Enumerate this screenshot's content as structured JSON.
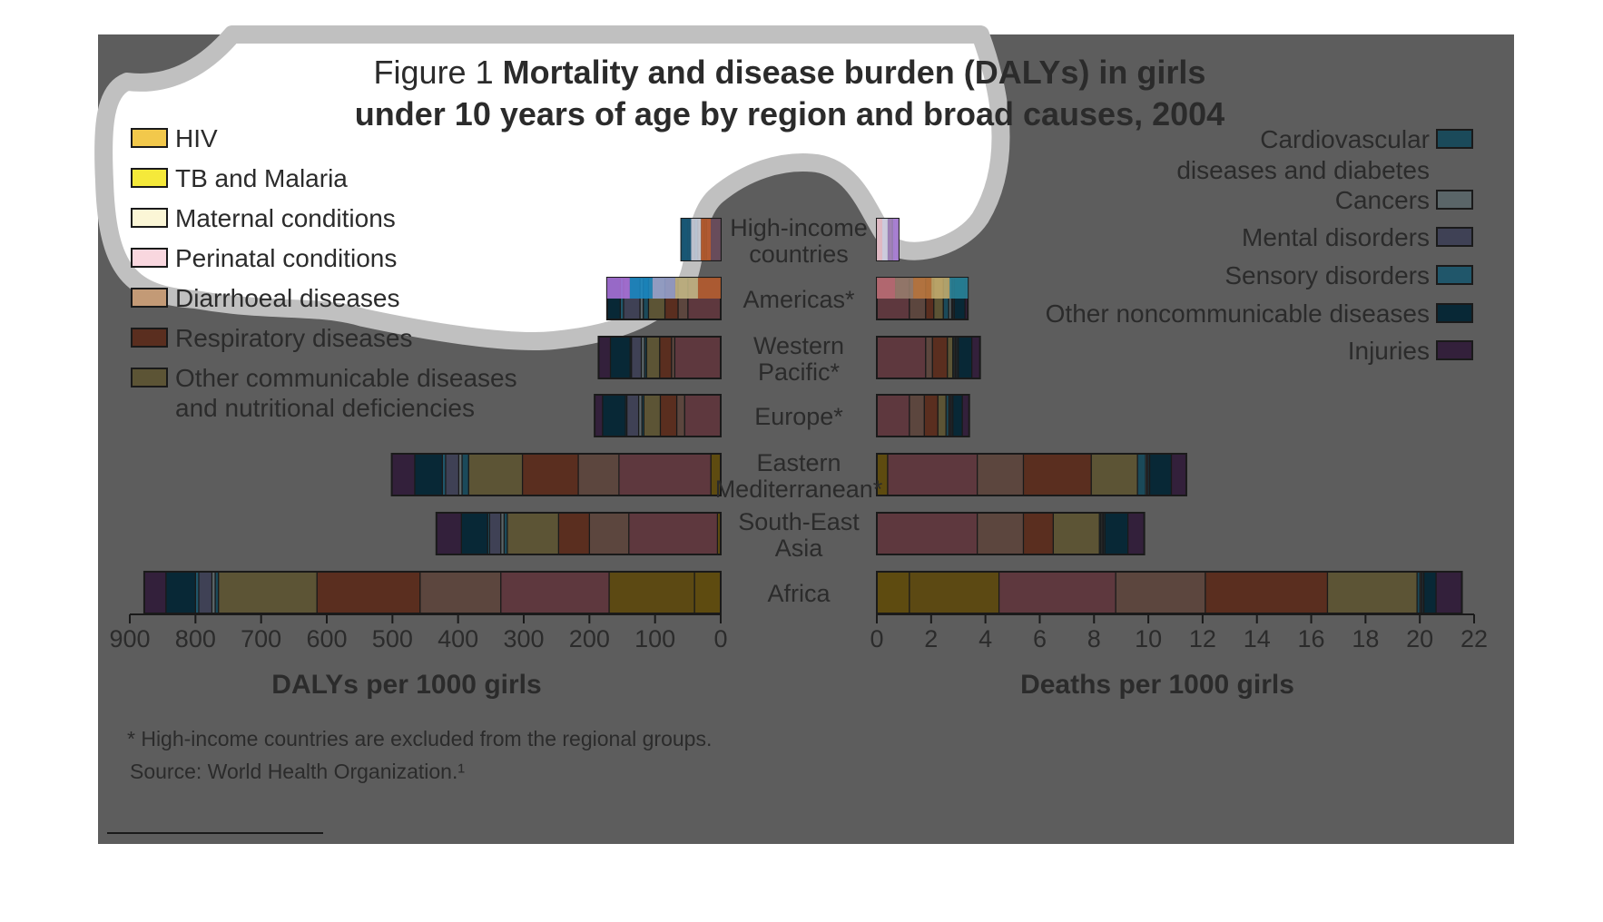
{
  "figure": {
    "title_prefix": "Figure 1",
    "title_line1": "Mortality and disease burden (DALYs) in girls",
    "title_line2": "under 10 years of age by region and broad causes, 2004",
    "footnote": "* High-income countries are excluded from the regional groups.",
    "source": "Source: World Health Organization.¹"
  },
  "colors": {
    "panel_bg": "#5d5d5d",
    "panel_text": "#2b2b2b",
    "overlay_stroke": "#c0c0c0",
    "overlay_fill": "#ffffff",
    "bar_outline": "#1a1a1a"
  },
  "chart_data": [
    {
      "type": "bar",
      "orientation": "horizontal",
      "direction": "right-to-left",
      "stacked": true,
      "xlabel": "DALYs per 1000 girls",
      "ylabel": "",
      "xlim": [
        0,
        900
      ],
      "xticks": [
        "900",
        "800",
        "700",
        "600",
        "500",
        "400",
        "300",
        "200",
        "100",
        "0"
      ],
      "categories": [
        "High-income countries",
        "Americas*",
        "Western Pacific*",
        "Europe*",
        "Eastern Mediterranean*",
        "South-East Asia",
        "Africa"
      ],
      "series": [
        {
          "name": "HIV",
          "values": [
            0,
            0,
            0,
            0,
            15,
            5,
            40
          ],
          "color": "#5e4b10"
        },
        {
          "name": "TB and Malaria",
          "values": [
            0,
            0,
            0,
            0,
            0,
            0,
            130
          ],
          "color": "#5c4913"
        },
        {
          "name": "Maternal conditions",
          "values": [
            0,
            0,
            0,
            0,
            0,
            0,
            0
          ],
          "color": "#5c5a45"
        },
        {
          "name": "Perinatal conditions",
          "values": [
            22,
            50,
            70,
            55,
            140,
            135,
            165
          ],
          "color": "#5e383e"
        },
        {
          "name": "Diarrhoeal diseases",
          "values": [
            3,
            15,
            5,
            12,
            62,
            60,
            123
          ],
          "color": "#5c463e"
        },
        {
          "name": "Respiratory diseases",
          "values": [
            5,
            20,
            18,
            25,
            85,
            47,
            157
          ],
          "color": "#5a2e1f"
        },
        {
          "name": "Other communicable diseases and nutritional deficiencies",
          "values": [
            5,
            25,
            20,
            25,
            82,
            78,
            150
          ],
          "color": "#5c5435"
        },
        {
          "name": "Cardiovascular diseases and diabetes",
          "values": [
            5,
            8,
            3,
            3,
            10,
            5,
            5
          ],
          "color": "#1b4a5a"
        },
        {
          "name": "Cancers",
          "values": [
            3,
            5,
            5,
            5,
            5,
            5,
            5
          ],
          "color": "#5a6568"
        },
        {
          "name": "Mental disorders",
          "values": [
            5,
            25,
            15,
            18,
            20,
            17,
            20
          ],
          "color": "#3f4155"
        },
        {
          "name": "Sensory disorders",
          "values": [
            2,
            5,
            2,
            2,
            5,
            3,
            5
          ],
          "color": "#20566a"
        },
        {
          "name": "Other noncommunicable diseases",
          "values": [
            8,
            20,
            30,
            35,
            42,
            40,
            45
          ],
          "color": "#082836"
        },
        {
          "name": "Injuries",
          "values": [
            2,
            0,
            18,
            12,
            35,
            38,
            33
          ],
          "color": "#33203b"
        }
      ]
    },
    {
      "type": "bar",
      "orientation": "horizontal",
      "direction": "left-to-right",
      "stacked": true,
      "xlabel": "Deaths per 1000 girls",
      "ylabel": "",
      "xlim": [
        0,
        22
      ],
      "xticks": [
        "0",
        "2",
        "4",
        "6",
        "8",
        "10",
        "12",
        "14",
        "16",
        "18",
        "20",
        "22"
      ],
      "categories": [
        "High-income countries",
        "Americas*",
        "Western Pacific*",
        "Europe*",
        "Eastern Mediterranean*",
        "South-East Asia",
        "Africa"
      ],
      "series": [
        {
          "name": "HIV",
          "values": [
            0,
            0,
            0,
            0,
            0.4,
            0,
            1.2
          ],
          "color": "#5e4b10"
        },
        {
          "name": "TB and Malaria",
          "values": [
            0,
            0,
            0,
            0,
            0,
            0,
            3.3
          ],
          "color": "#5c4913"
        },
        {
          "name": "Maternal conditions",
          "values": [
            0,
            0,
            0,
            0,
            0,
            0,
            0
          ],
          "color": "#5c5a45"
        },
        {
          "name": "Perinatal conditions",
          "values": [
            0.4,
            1.2,
            1.8,
            1.2,
            3.3,
            3.7,
            4.3
          ],
          "color": "#5e383e"
        },
        {
          "name": "Diarrhoeal diseases",
          "values": [
            0.05,
            0.6,
            0.25,
            0.55,
            1.7,
            1.7,
            3.3
          ],
          "color": "#5c463e"
        },
        {
          "name": "Respiratory diseases",
          "values": [
            0.1,
            0.3,
            0.55,
            0.5,
            2.5,
            1.1,
            4.5
          ],
          "color": "#5a2e1f"
        },
        {
          "name": "Other communicable diseases and nutritional deficiencies",
          "values": [
            0.05,
            0.35,
            0.2,
            0.3,
            1.7,
            1.7,
            3.3
          ],
          "color": "#5c5435"
        },
        {
          "name": "Cardiovascular diseases and diabetes",
          "values": [
            0.05,
            0.2,
            0.05,
            0.1,
            0.3,
            0.05,
            0.1
          ],
          "color": "#1b4a5a"
        },
        {
          "name": "Cancers",
          "values": [
            0.05,
            0.1,
            0.05,
            0.05,
            0.05,
            0.05,
            0.05
          ],
          "color": "#5a6568"
        },
        {
          "name": "Mental disorders",
          "values": [
            0.05,
            0.05,
            0.05,
            0.05,
            0.05,
            0.05,
            0.05
          ],
          "color": "#3f4155"
        },
        {
          "name": "Sensory disorders",
          "values": [
            0,
            0.05,
            0.05,
            0.05,
            0.05,
            0.05,
            0.05
          ],
          "color": "#20566a"
        },
        {
          "name": "Other noncommunicable diseases",
          "values": [
            0.05,
            0.4,
            0.5,
            0.35,
            0.8,
            0.85,
            0.45
          ],
          "color": "#082836"
        },
        {
          "name": "Injuries",
          "values": [
            0,
            0.1,
            0.3,
            0.25,
            0.55,
            0.6,
            0.95
          ],
          "color": "#33203b"
        }
      ]
    }
  ],
  "legend": {
    "left": [
      {
        "label": "HIV",
        "color": "#f2c84b"
      },
      {
        "label": "TB and Malaria",
        "color": "#f5e93a"
      },
      {
        "label": "Maternal conditions",
        "color": "#fbf6d6"
      },
      {
        "label": "Perinatal conditions",
        "color": "#f9d7df"
      },
      {
        "label": "Diarrhoeal diseases",
        "color": "#c39a76"
      },
      {
        "label": "Respiratory diseases",
        "color": "#5a2e1f"
      },
      {
        "label": "Other communicable diseases",
        "label2": "and nutritional deficiencies",
        "color": "#5c5435"
      }
    ],
    "right": [
      {
        "label": "Cardiovascular",
        "label2": "diseases and diabetes",
        "color": "#1b4a5a"
      },
      {
        "label": "Cancers",
        "color": "#5a6568"
      },
      {
        "label": "Mental disorders",
        "color": "#3f4155"
      },
      {
        "label": "Sensory disorders",
        "color": "#20566a"
      },
      {
        "label": "Other noncommunicable diseases",
        "color": "#082836"
      },
      {
        "label": "Injuries",
        "color": "#33203b"
      }
    ]
  },
  "region_labels": [
    {
      "line1": "High-income",
      "line2": "countries"
    },
    {
      "line1": "Americas*",
      "line2": ""
    },
    {
      "line1": "Western",
      "line2": "Pacific*"
    },
    {
      "line1": "Europe*",
      "line2": ""
    },
    {
      "line1": "Eastern",
      "line2": "Mediterranean*"
    },
    {
      "line1": "South-East",
      "line2": "Asia"
    },
    {
      "line1": "Africa",
      "line2": ""
    }
  ],
  "highlight_colors": {
    "high_income_dalys": [
      "#1b5f80",
      "#d4d8e6",
      "#c06030",
      "#6a5060"
    ],
    "americas_dalys": [
      "#b074e0",
      "#1a8cc8",
      "#9aa8d8",
      "#c9bd8a",
      "#b86030"
    ],
    "high_income_deaths": [
      "#f7d0da",
      "#e0e4f8",
      "#b090d0",
      "#c090f0"
    ],
    "americas_deaths": [
      "#c07078",
      "#9a8070",
      "#c07a40",
      "#c8b070",
      "#2a8aa0"
    ]
  }
}
